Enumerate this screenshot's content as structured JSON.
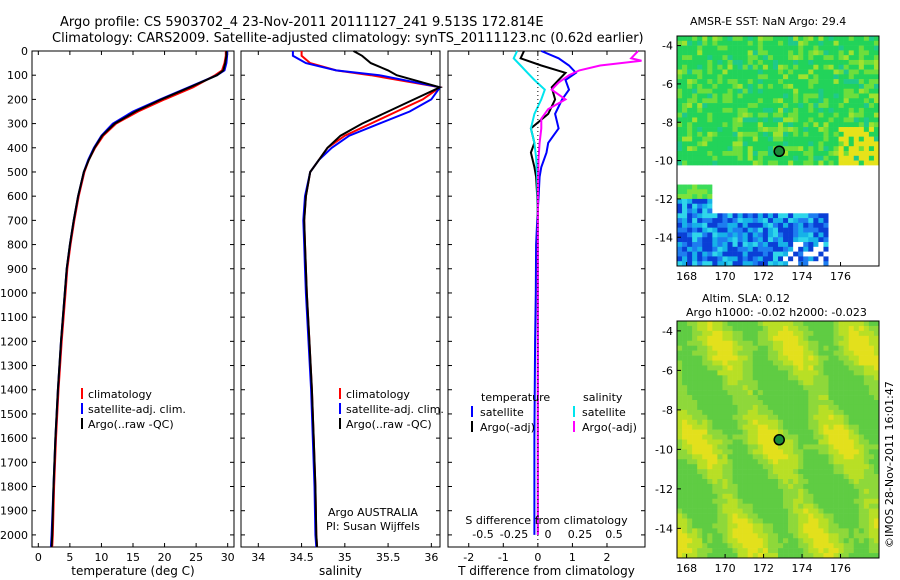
{
  "header": {
    "line1": "Argo profile: CS 5903702_4 23-Nov-2011 20111127_241 9.513S 172.814E",
    "line2": "Climatology: CARS2009. Satellite-adjusted climatology: synTS_20111123.nc (0.62d earlier)"
  },
  "colors": {
    "climatology": "#ff0000",
    "satellite": "#0000ff",
    "argo": "#000000",
    "sat_salinity": "#00e5ee",
    "argo_salinity": "#ff00ff"
  },
  "chart_data": [
    {
      "id": "temperature",
      "type": "line",
      "xlabel": "temperature (deg C)",
      "ylabel": "",
      "xlim": [
        -1,
        31
      ],
      "ylim": [
        2050,
        0
      ],
      "xticks": [
        0,
        5,
        10,
        15,
        20,
        25,
        30
      ],
      "yticks": [
        0,
        100,
        200,
        300,
        400,
        500,
        600,
        700,
        800,
        900,
        1000,
        1100,
        1200,
        1300,
        1400,
        1500,
        1600,
        1700,
        1800,
        1900,
        2000
      ],
      "legend": [
        "climatology",
        "satellite-adj. clim.",
        "Argo(..raw -QC)"
      ],
      "series": [
        {
          "name": "climatology",
          "color": "red",
          "depth": [
            0,
            20,
            50,
            80,
            100,
            150,
            200,
            250,
            300,
            350,
            400,
            450,
            500,
            600,
            700,
            800,
            900,
            1000,
            1200,
            1400,
            1600,
            1800,
            2000,
            2050
          ],
          "values": [
            29.7,
            29.7,
            29.5,
            29.1,
            28.0,
            24.5,
            20.0,
            15.8,
            12.3,
            10.3,
            9.0,
            8.0,
            7.3,
            6.4,
            5.7,
            5.1,
            4.6,
            4.3,
            3.7,
            3.2,
            2.8,
            2.5,
            2.3,
            2.2
          ]
        },
        {
          "name": "satellite-adj. clim.",
          "color": "blue",
          "depth": [
            0,
            20,
            50,
            80,
            100,
            150,
            200,
            250,
            300,
            350,
            400,
            450,
            500,
            600,
            700,
            800,
            900,
            1000,
            1200,
            1400,
            1600,
            1800,
            2000,
            2050
          ],
          "values": [
            29.9,
            29.9,
            29.8,
            29.5,
            28.3,
            23.8,
            19.3,
            15.0,
            11.8,
            10.0,
            8.8,
            7.9,
            7.2,
            6.3,
            5.6,
            5.0,
            4.5,
            4.2,
            3.6,
            3.1,
            2.7,
            2.4,
            2.1,
            2.0
          ]
        },
        {
          "name": "Argo(..raw -QC)",
          "color": "black",
          "depth": [
            0,
            20,
            50,
            80,
            100,
            150,
            200,
            250,
            300,
            350,
            400,
            450,
            500,
            600,
            700,
            800,
            900,
            1000,
            1200,
            1400,
            1600,
            1800,
            2000,
            2050
          ],
          "values": [
            29.8,
            29.8,
            29.6,
            29.3,
            28.3,
            24.0,
            19.5,
            15.4,
            12.1,
            10.1,
            8.9,
            8.0,
            7.2,
            6.3,
            5.6,
            5.0,
            4.5,
            4.2,
            3.6,
            3.1,
            2.7,
            2.4,
            2.2,
            2.1
          ]
        }
      ]
    },
    {
      "id": "salinity",
      "type": "line",
      "xlabel": "salinity",
      "xlim": [
        33.8,
        36.1
      ],
      "ylim": [
        2050,
        0
      ],
      "xticks": [
        34,
        34.5,
        35,
        35.5,
        36
      ],
      "legend": [
        "climatology",
        "satellite-adj. clim.",
        "Argo(..raw -QC)"
      ],
      "note1": "Argo AUSTRALIA",
      "note2": "PI: Susan Wijffels",
      "series": [
        {
          "name": "climatology",
          "color": "red",
          "depth": [
            0,
            20,
            50,
            80,
            100,
            150,
            200,
            250,
            300,
            350,
            400,
            450,
            500,
            600,
            700,
            800,
            900,
            1000,
            1200,
            1400,
            1600,
            1800,
            2000,
            2050
          ],
          "values": [
            34.5,
            34.5,
            34.6,
            34.9,
            35.3,
            36.1,
            35.9,
            35.6,
            35.3,
            35.0,
            34.8,
            34.7,
            34.6,
            34.55,
            34.53,
            34.54,
            34.55,
            34.56,
            34.59,
            34.62,
            34.64,
            34.66,
            34.67,
            34.68
          ]
        },
        {
          "name": "satellite-adj. clim.",
          "color": "blue",
          "depth": [
            0,
            20,
            50,
            80,
            100,
            150,
            200,
            250,
            300,
            350,
            400,
            450,
            500,
            600,
            700,
            800,
            900,
            1000,
            1200,
            1400,
            1600,
            1800,
            2000,
            2050
          ],
          "values": [
            34.4,
            34.4,
            34.55,
            34.9,
            35.4,
            36.1,
            36.0,
            35.75,
            35.4,
            35.05,
            34.85,
            34.7,
            34.6,
            34.54,
            34.52,
            34.53,
            34.54,
            34.55,
            34.58,
            34.61,
            34.63,
            34.65,
            34.66,
            34.67
          ]
        },
        {
          "name": "Argo(..raw -QC)",
          "color": "black",
          "depth": [
            0,
            20,
            50,
            80,
            100,
            150,
            200,
            250,
            300,
            350,
            400,
            450,
            500,
            600,
            700,
            800,
            900,
            1000,
            1200,
            1400,
            1600,
            1800,
            2000,
            2050
          ],
          "values": [
            35.1,
            35.2,
            35.3,
            35.5,
            35.6,
            36.1,
            35.8,
            35.5,
            35.2,
            34.95,
            34.8,
            34.7,
            34.6,
            34.55,
            34.53,
            34.54,
            34.55,
            34.56,
            34.59,
            34.62,
            34.64,
            34.66,
            34.67,
            34.68
          ]
        }
      ]
    },
    {
      "id": "differences",
      "type": "line",
      "xlabel": "T difference from climatology",
      "toplabel": "S difference from climatology",
      "xlim": [
        -2.6,
        3.1
      ],
      "ylim": [
        2050,
        0
      ],
      "xticks": [
        -2,
        -1,
        0,
        1,
        2
      ],
      "sticks": [
        "-0.5",
        "-0.25",
        "0",
        "0.25",
        "0.5"
      ],
      "legend_head_t": "temperature",
      "legend_head_s": "salinity",
      "legend_sat": "satellite",
      "legend_argo": "Argo(-adj)",
      "series": [
        {
          "name": "temperature satellite",
          "color": "blue",
          "depth": [
            0,
            30,
            60,
            90,
            120,
            160,
            200,
            260,
            320,
            380,
            420,
            480,
            520,
            600,
            700,
            800,
            1000,
            1200,
            1600,
            2000
          ],
          "values": [
            0.1,
            0.6,
            0.9,
            1.1,
            0.8,
            0.9,
            0.7,
            0.5,
            0.6,
            0.3,
            0.25,
            0.1,
            0.05,
            0.02,
            -0.02,
            -0.05,
            -0.06,
            -0.08,
            -0.1,
            -0.1
          ]
        },
        {
          "name": "temperature Argo(-adj)",
          "color": "black",
          "depth": [
            0,
            30,
            60,
            90,
            120,
            150,
            200,
            260,
            320,
            380,
            420,
            480,
            520,
            600,
            700,
            800,
            1000,
            1200,
            1600,
            2000
          ],
          "values": [
            -0.4,
            -0.5,
            0.1,
            0.8,
            0.6,
            0.4,
            0.5,
            0.3,
            -0.2,
            -0.1,
            -0.2,
            -0.1,
            -0.05,
            -0.02,
            0.0,
            0.0,
            0.0,
            0.0,
            0.0,
            0.0
          ]
        },
        {
          "name": "salinity satellite",
          "color": "cyan",
          "depth": [
            0,
            30,
            60,
            90,
            120,
            160,
            200,
            260,
            320,
            380,
            440,
            520,
            600,
            700,
            800,
            1000,
            1200,
            1600,
            2000
          ],
          "values": [
            -0.6,
            -0.7,
            -0.5,
            -0.3,
            -0.1,
            0.2,
            0.1,
            -0.1,
            -0.2,
            -0.1,
            -0.05,
            -0.02,
            -0.01,
            0.0,
            0.0,
            0.0,
            0.0,
            0.0,
            0.0
          ]
        },
        {
          "name": "salinity Argo(-adj)",
          "color": "magenta",
          "depth": [
            0,
            30,
            40,
            60,
            80,
            100,
            130,
            160,
            200,
            240,
            280,
            320,
            380,
            440,
            520,
            600,
            700,
            800,
            1000,
            1200,
            1600,
            2000
          ],
          "values": [
            2.9,
            2.7,
            3.0,
            1.8,
            1.2,
            0.9,
            0.6,
            0.4,
            0.8,
            0.3,
            0.1,
            0.1,
            0.05,
            0.02,
            0.01,
            0.0,
            0.0,
            0.0,
            0.0,
            0.0,
            0.0,
            0.0
          ]
        }
      ]
    },
    {
      "id": "sst_map",
      "type": "heatmap",
      "title": "AMSR-E SST: NaN Argo: 29.4",
      "xticks": [
        "168",
        "170",
        "172",
        "174",
        "176"
      ],
      "yticks": [
        "-4",
        "-6",
        "-8",
        "-10",
        "-12",
        "-14"
      ],
      "xlim": [
        167.5,
        178
      ],
      "ylim": [
        -15.5,
        -3.5
      ],
      "point": [
        172.814,
        -9.513
      ]
    },
    {
      "id": "sla_map",
      "type": "heatmap",
      "title1": "Altim. SLA: 0.12",
      "title2": "Argo h1000: -0.02 h2000: -0.023",
      "xticks": [
        "168",
        "170",
        "172",
        "174",
        "176"
      ],
      "yticks": [
        "-4",
        "-6",
        "-8",
        "-10",
        "-12",
        "-14"
      ],
      "xlim": [
        167.5,
        178
      ],
      "ylim": [
        -15.5,
        -3.5
      ],
      "point": [
        172.814,
        -9.513
      ]
    }
  ],
  "footer": {
    "credit": "©IMOS 28-Nov-2011 16:01:47"
  }
}
